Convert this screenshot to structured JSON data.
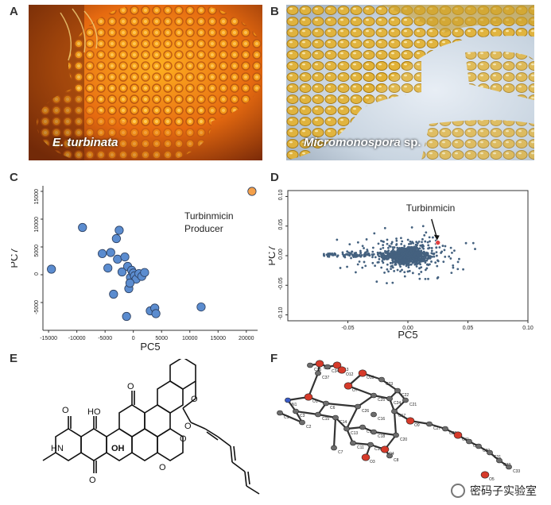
{
  "panel_labels": {
    "a": "A",
    "b": "B",
    "c": "C",
    "d": "D",
    "e": "E",
    "f": "F"
  },
  "panel_a": {
    "caption": "E. turbinata"
  },
  "panel_b": {
    "caption_italic": "Micromonospora",
    "caption_rest": " sp."
  },
  "chart_data": [
    {
      "panel": "C",
      "type": "scatter",
      "xlabel": "PC5",
      "ylabel": "PC7",
      "xlim": [
        -16000,
        22000
      ],
      "ylim": [
        -10000,
        16000
      ],
      "xticks": [
        -15000,
        -10000,
        -5000,
        0,
        5000,
        10000,
        15000,
        20000
      ],
      "yticks": [
        -5000,
        0,
        5000,
        10000,
        15000
      ],
      "annotation": [
        "Turbinmicin",
        "Producer"
      ],
      "series": [
        {
          "color": "#5b8ccf",
          "points": [
            [
              -14500,
              1000
            ],
            [
              -9000,
              8500
            ],
            [
              -5500,
              3800
            ],
            [
              -4000,
              4000
            ],
            [
              -3000,
              6500
            ],
            [
              -2500,
              8000
            ],
            [
              -4500,
              1200
            ],
            [
              -3500,
              -3500
            ],
            [
              -2800,
              2800
            ],
            [
              -2000,
              500
            ],
            [
              -1500,
              3200
            ],
            [
              -1000,
              1500
            ],
            [
              -500,
              -500
            ],
            [
              -300,
              800
            ],
            [
              0,
              300
            ],
            [
              200,
              -200
            ],
            [
              500,
              -800
            ],
            [
              -800,
              -2500
            ],
            [
              -600,
              -1500
            ],
            [
              1000,
              200
            ],
            [
              1500,
              -300
            ],
            [
              2000,
              400
            ],
            [
              3000,
              -6500
            ],
            [
              -1200,
              -7500
            ],
            [
              3800,
              -6000
            ],
            [
              4000,
              -7000
            ],
            [
              12000,
              -5800
            ]
          ]
        },
        {
          "color": "#f4a04a",
          "points": [
            [
              21000,
              15000
            ]
          ]
        }
      ]
    },
    {
      "panel": "D",
      "type": "scatter",
      "xlabel": "PC5",
      "ylabel": "PC7",
      "xlim": [
        -0.1,
        0.1
      ],
      "ylim": [
        -0.11,
        0.11
      ],
      "xticks": [
        -0.05,
        0.0,
        0.05,
        0.1
      ],
      "xtick_labels": [
        "-0.05",
        "0.00",
        "0.05",
        "0.10"
      ],
      "yticks": [
        -0.1,
        -0.05,
        0.0,
        0.05,
        0.1
      ],
      "ytick_labels": [
        "-0.10",
        "-0.05",
        "0.00",
        "0.05",
        "0.10"
      ],
      "annotation": "Turbinmicin",
      "highlight_point": [
        0.025,
        0.022
      ],
      "point_color": "#44617f",
      "highlight_color": "#e04040"
    }
  ],
  "panel_f_labels": [
    "C35",
    "O11",
    "C34",
    "O13",
    "O12",
    "C37",
    "O10",
    "O7",
    "C23",
    "C22",
    "N1",
    "O1",
    "C6",
    "C25",
    "C24",
    "C26",
    "C3",
    "C15",
    "C14",
    "C16",
    "C17",
    "C21",
    "O9",
    "C27",
    "C2",
    "C13",
    "C12",
    "C18",
    "C20",
    "C28",
    "C1",
    "C11",
    "C10",
    "O4",
    "O11",
    "C29",
    "C7",
    "O3",
    "C8",
    "C30",
    "C31",
    "C32",
    "C33",
    "O5"
  ],
  "watermark": {
    "text": "密码子实验室"
  }
}
